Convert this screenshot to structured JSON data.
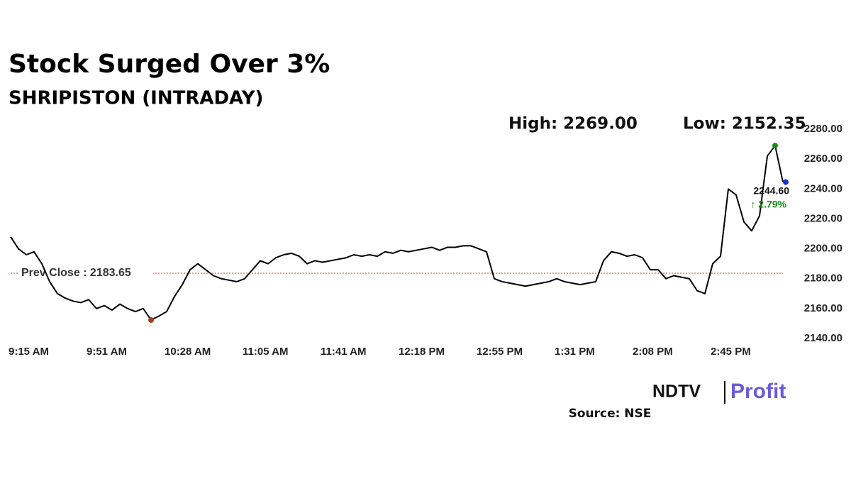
{
  "chart_data": {
    "type": "line",
    "title": "Stock Surged Over 3%",
    "subtitle": "SHRIPISTON (INTRADAY)",
    "high_label": "High: 2269.00",
    "low_label": "Low: 2152.35",
    "categories": [
      "9:15 AM",
      null,
      null,
      null,
      null,
      null,
      null,
      null,
      null,
      null,
      "9:51 AM",
      null,
      null,
      null,
      null,
      null,
      null,
      null,
      null,
      null,
      "10:28 AM",
      null,
      null,
      null,
      null,
      null,
      null,
      null,
      null,
      null,
      "11:05 AM",
      null,
      null,
      null,
      null,
      null,
      null,
      null,
      null,
      null,
      "11:41 AM",
      null,
      null,
      null,
      null,
      null,
      null,
      null,
      null,
      null,
      "12:18 PM",
      null,
      null,
      null,
      null,
      null,
      null,
      null,
      null,
      null,
      "12:55 PM",
      null,
      null,
      null,
      null,
      null,
      null,
      null,
      null,
      null,
      "1:31 PM",
      null,
      null,
      null,
      null,
      null,
      null,
      null,
      null,
      null,
      "2:08 PM",
      null,
      null,
      null,
      null,
      null,
      null,
      null,
      null,
      null,
      "2:45 PM",
      null,
      null,
      null,
      null,
      null,
      null,
      null,
      null,
      null
    ],
    "values": [
      2208,
      2200,
      2196,
      2198,
      2190,
      2178,
      2170,
      2167,
      2165,
      2164,
      2166,
      2160,
      2162,
      2159,
      2163,
      2160,
      2158,
      2160,
      2152.35,
      2155,
      2158,
      2168,
      2176,
      2186,
      2190,
      2186,
      2182,
      2180,
      2179,
      2178,
      2180,
      2186,
      2192,
      2190,
      2194,
      2196,
      2197,
      2195,
      2190,
      2192,
      2191,
      2192,
      2193,
      2194,
      2196,
      2195,
      2196,
      2195,
      2198,
      2197,
      2199,
      2198,
      2199,
      2200,
      2201,
      2199,
      2201,
      2201,
      2202,
      2202,
      2200,
      2198,
      2180,
      2178,
      2177,
      2176,
      2175,
      2176,
      2177,
      2178,
      2180,
      2178,
      2177,
      2176,
      2177,
      2178,
      2192,
      2198,
      2197,
      2195,
      2196,
      2194,
      2186,
      2186,
      2180,
      2182,
      2181,
      2180,
      2172,
      2170,
      2190,
      2195,
      2240,
      2236,
      2218,
      2212,
      2222,
      2262,
      2269,
      2244.6
    ],
    "color": "#000000",
    "high_color": "#1a8a1a",
    "low_color": "#a0401a",
    "last_color": "#1a2fd0",
    "last_price_label": "2244.60",
    "change_label": "↑ 2.79%",
    "change_color": "#1a8a1a",
    "prev_close": {
      "value": 2183.65,
      "label": "Prev Close : 2183.65",
      "color": "#c0392b"
    },
    "ylim": [
      2140,
      2280
    ],
    "yticks": [
      {
        "value": 2140,
        "label": "2140.00"
      },
      {
        "value": 2160,
        "label": "2160.00"
      },
      {
        "value": 2180,
        "label": "2180.00"
      },
      {
        "value": 2200,
        "label": "2200.00"
      },
      {
        "value": 2220,
        "label": "2220.00"
      },
      {
        "value": 2240,
        "label": "2240.00"
      },
      {
        "value": 2260,
        "label": "2260.00"
      },
      {
        "value": 2280,
        "label": "2280.00"
      }
    ],
    "source": "Source: NSE",
    "logo": {
      "brand": "NDTV",
      "product": "Profit"
    }
  }
}
